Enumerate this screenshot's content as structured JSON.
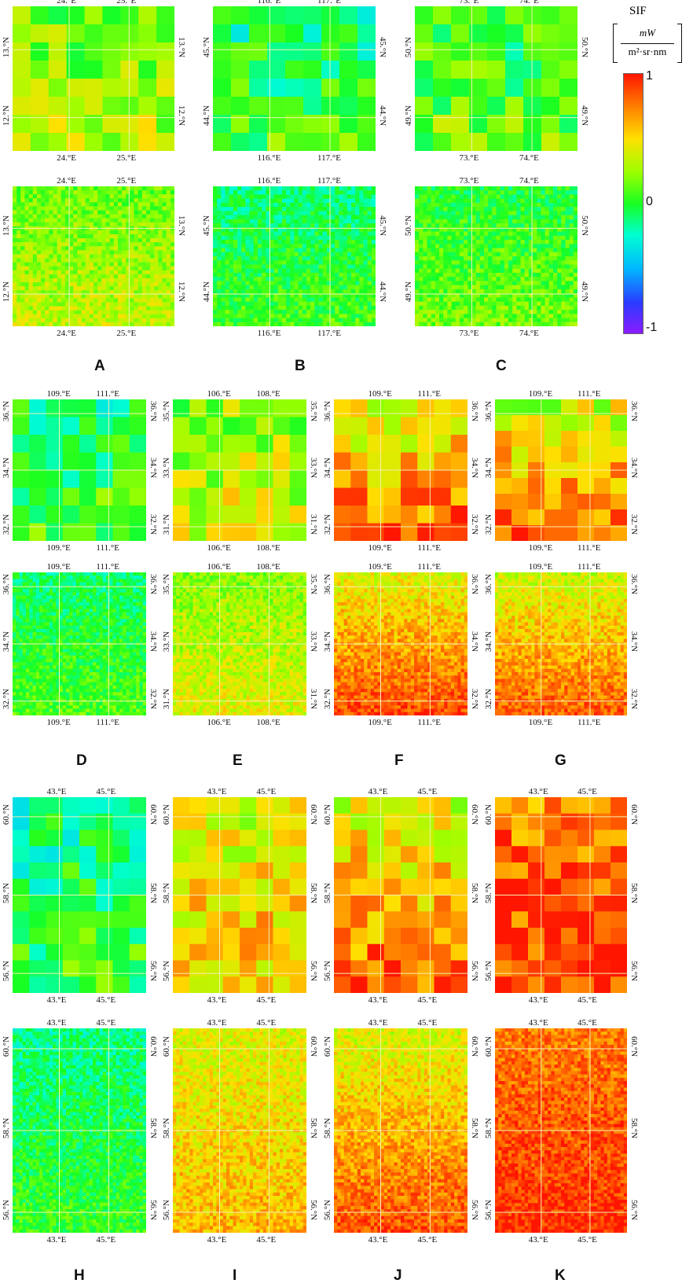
{
  "legend": {
    "title": "SIF",
    "unit_numerator": "mW",
    "unit_denominator": "m²·sr·nm",
    "max_label": "1",
    "mid_label": "0",
    "min_label": "-1",
    "colors": [
      "#ff1500",
      "#ff7a00",
      "#ffe000",
      "#9cff00",
      "#18ff22",
      "#00ffd0",
      "#00b8ff",
      "#2a3cff",
      "#8a1cff"
    ]
  },
  "panels": [
    {
      "letter": "A",
      "lon": [
        "24.°E",
        "25.°E"
      ],
      "lat": [
        "13.°N",
        "12.°N"
      ],
      "mean": 0.25,
      "coarse_seed": 11
    },
    {
      "letter": "B",
      "lon": [
        "116.°E",
        "117.°E"
      ],
      "lat": [
        "45.°N",
        "44.°N"
      ],
      "mean": -0.02,
      "coarse_seed": 23
    },
    {
      "letter": "C",
      "lon": [
        "73.°E",
        "74.°E"
      ],
      "lat": [
        "50.°N",
        "49.°N"
      ],
      "mean": 0.08,
      "coarse_seed": 37
    },
    {
      "letter": "D",
      "lon": [
        "109.°E",
        "111.°E"
      ],
      "lat": [
        "36.°N",
        "34.°N",
        "32.°N"
      ],
      "mean": 0.0,
      "coarse_seed": 41
    },
    {
      "letter": "E",
      "lon": [
        "106.°E",
        "108.°E"
      ],
      "lat": [
        "35.°N",
        "33.°N",
        "31.°N"
      ],
      "mean": 0.32,
      "coarse_seed": 53
    },
    {
      "letter": "F",
      "lon": [
        "109.°E",
        "111.°E"
      ],
      "lat": [
        "36.°N",
        "34.°N",
        "32.°N"
      ],
      "mean": 0.65,
      "coarse_seed": 67
    },
    {
      "letter": "G",
      "lon": [
        "109.°E",
        "111.°E"
      ],
      "lat": [
        "36.°N",
        "34.°N",
        "32.°N"
      ],
      "mean": 0.6,
      "coarse_seed": 71
    },
    {
      "letter": "H",
      "lon": [
        "43.°E",
        "45.°E"
      ],
      "lat": [
        "60.°N",
        "58.°N",
        "56.°N"
      ],
      "mean": -0.05,
      "coarse_seed": 83
    },
    {
      "letter": "I",
      "lon": [
        "43.°E",
        "45.°E"
      ],
      "lat": [
        "60.°N",
        "58.°N",
        "56.°N"
      ],
      "mean": 0.5,
      "coarse_seed": 97
    },
    {
      "letter": "J",
      "lon": [
        "43.°E",
        "45.°E"
      ],
      "lat": [
        "60.°N",
        "58.°N",
        "56.°N"
      ],
      "mean": 0.62,
      "coarse_seed": 101
    },
    {
      "letter": "K",
      "lon": [
        "43.°E",
        "45.°E"
      ],
      "lat": [
        "60.°N",
        "58.°N",
        "56.°N"
      ],
      "mean": 0.85,
      "coarse_seed": 113
    }
  ]
}
